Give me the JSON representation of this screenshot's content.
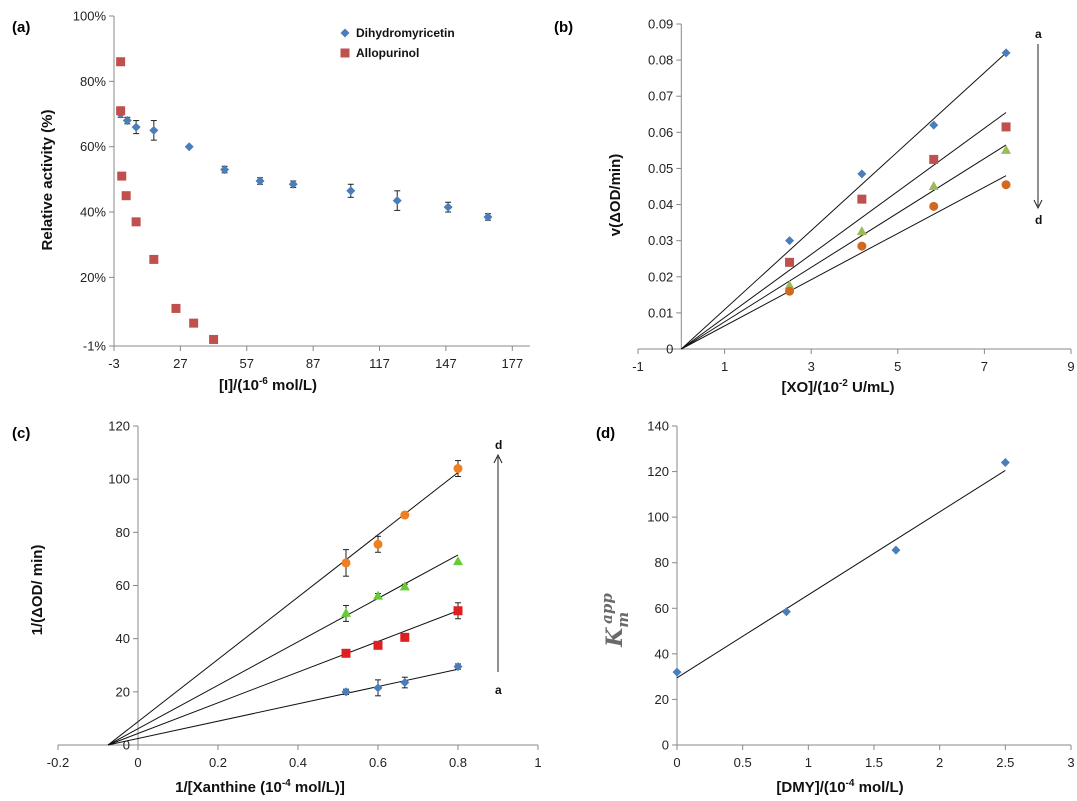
{
  "chart_data": [
    {
      "id": "a",
      "panel_label": "(a)",
      "type": "scatter",
      "xlabel": "[I]/(10-6 mol/L)",
      "ylabel": "Relative activity (%)",
      "xlim": [
        -3,
        185
      ],
      "ylim": [
        -1,
        100
      ],
      "x_ticks": [
        -3,
        27,
        57,
        87,
        117,
        147,
        177
      ],
      "y_ticks": [
        -1,
        20,
        40,
        60,
        80,
        100
      ],
      "y_tick_labels": [
        "-1%",
        "20%",
        "40%",
        "60%",
        "80%",
        "100%"
      ],
      "legend_position": "top-right",
      "series": [
        {
          "name": "Dihydromyricetin",
          "color": "#4a7ebb",
          "marker": "diamond",
          "points": [
            {
              "x": 0,
              "y": 70,
              "err": 1
            },
            {
              "x": 3,
              "y": 68,
              "err": 1
            },
            {
              "x": 7,
              "y": 66,
              "err": 2
            },
            {
              "x": 15,
              "y": 65,
              "err": 3
            },
            {
              "x": 31,
              "y": 60,
              "err": 0
            },
            {
              "x": 47,
              "y": 53,
              "err": 1
            },
            {
              "x": 63,
              "y": 49.5,
              "err": 1
            },
            {
              "x": 78,
              "y": 48.5,
              "err": 1
            },
            {
              "x": 104,
              "y": 46.5,
              "err": 2
            },
            {
              "x": 125,
              "y": 43.5,
              "err": 3
            },
            {
              "x": 148,
              "y": 41.5,
              "err": 1.5
            },
            {
              "x": 166,
              "y": 38.5,
              "err": 1
            }
          ]
        },
        {
          "name": "Allopurinol",
          "color": "#c0504d",
          "marker": "square",
          "points": [
            {
              "x": 0,
              "y": 86
            },
            {
              "x": 0,
              "y": 71
            },
            {
              "x": 0.5,
              "y": 51
            },
            {
              "x": 2.5,
              "y": 45
            },
            {
              "x": 7,
              "y": 37
            },
            {
              "x": 15,
              "y": 25.5
            },
            {
              "x": 25,
              "y": 10.5
            },
            {
              "x": 33,
              "y": 6
            },
            {
              "x": 42,
              "y": 1
            }
          ]
        }
      ]
    },
    {
      "id": "b",
      "panel_label": "(b)",
      "type": "scatter",
      "xlabel": "[XO]/(10-2 U/mL)",
      "ylabel": "v(ΔOD/min)",
      "xlim": [
        -1,
        9
      ],
      "ylim": [
        0,
        0.09
      ],
      "x_ticks": [
        -1,
        1,
        3,
        5,
        7,
        9
      ],
      "y_ticks": [
        0,
        0.01,
        0.02,
        0.03,
        0.04,
        0.05,
        0.06,
        0.07,
        0.08,
        0.09
      ],
      "y_tick_labels": [
        "0",
        "0.01",
        "0.02",
        "0.03",
        "0.04",
        "0.05",
        "0.06",
        "0.07",
        "0.08",
        "0.09"
      ],
      "annotation_top": "a",
      "annotation_bottom": "d",
      "series": [
        {
          "id": "a",
          "color": "#4a7ebb",
          "marker": "diamond",
          "x": [
            2.5,
            4.17,
            5.83,
            7.5
          ],
          "y": [
            0.03,
            0.0485,
            0.062,
            0.082
          ],
          "fit": {
            "x": [
              0,
              7.5
            ],
            "y": [
              0,
              0.082
            ]
          }
        },
        {
          "id": "b",
          "color": "#c0504d",
          "marker": "square",
          "x": [
            2.5,
            4.17,
            5.83,
            7.5
          ],
          "y": [
            0.024,
            0.0415,
            0.0525,
            0.0615
          ],
          "fit": {
            "x": [
              0,
              7.5
            ],
            "y": [
              0,
              0.0655
            ]
          }
        },
        {
          "id": "c",
          "color": "#9bbb59",
          "marker": "triangle",
          "x": [
            2.5,
            4.17,
            5.83,
            7.5
          ],
          "y": [
            0.0175,
            0.0325,
            0.045,
            0.055
          ],
          "fit": {
            "x": [
              0,
              7.5
            ],
            "y": [
              0,
              0.0565
            ]
          }
        },
        {
          "id": "d",
          "color": "#d2691e",
          "marker": "circle",
          "x": [
            2.5,
            4.17,
            5.83,
            7.5
          ],
          "y": [
            0.016,
            0.0285,
            0.0395,
            0.0455
          ],
          "fit": {
            "x": [
              0,
              7.5
            ],
            "y": [
              0,
              0.048
            ]
          }
        }
      ]
    },
    {
      "id": "c",
      "panel_label": "(c)",
      "type": "scatter",
      "xlabel": "1/[Xanthine (10-4 mol/L)]",
      "ylabel": "1/(ΔOD/ min)",
      "xlim": [
        -0.2,
        1
      ],
      "ylim": [
        0,
        120
      ],
      "x_ticks": [
        -0.2,
        0,
        0.2,
        0.4,
        0.6,
        0.8,
        1
      ],
      "y_ticks": [
        0,
        20,
        40,
        60,
        80,
        100,
        120
      ],
      "y_tick_labels": [
        "0",
        "20",
        "40",
        "60",
        "80",
        "100",
        "120"
      ],
      "annotation_top": "d",
      "annotation_bottom": "a",
      "series": [
        {
          "id": "a",
          "color": "#4a7ebb",
          "marker": "diamond",
          "x": [
            0.52,
            0.6,
            0.667,
            0.8
          ],
          "y": [
            20,
            21.5,
            23.5,
            29.5
          ],
          "err": [
            1,
            3,
            2,
            1
          ],
          "fit": {
            "x": [
              -0.075,
              0.8
            ],
            "y": [
              0,
              28.5
            ]
          }
        },
        {
          "id": "b",
          "color": "#e02020",
          "marker": "square",
          "x": [
            0.52,
            0.6,
            0.667,
            0.8
          ],
          "y": [
            34.5,
            37.5,
            40.5,
            50.5
          ],
          "err": [
            1,
            1,
            1,
            3
          ],
          "fit": {
            "x": [
              -0.075,
              0.8
            ],
            "y": [
              0,
              50.5
            ]
          }
        },
        {
          "id": "c",
          "color": "#66cc33",
          "marker": "triangle",
          "x": [
            0.52,
            0.6,
            0.667,
            0.8
          ],
          "y": [
            49.5,
            56,
            59.5,
            69
          ],
          "err": [
            3,
            1,
            1,
            0
          ],
          "fit": {
            "x": [
              -0.075,
              0.8
            ],
            "y": [
              0,
              71.5
            ]
          }
        },
        {
          "id": "d",
          "color": "#f07f1f",
          "marker": "circle",
          "x": [
            0.52,
            0.6,
            0.667,
            0.8
          ],
          "y": [
            68.5,
            75.5,
            86.5,
            104
          ],
          "err": [
            5,
            3,
            1,
            3
          ],
          "fit": {
            "x": [
              -0.075,
              0.8
            ],
            "y": [
              0,
              102.5
            ]
          }
        }
      ]
    },
    {
      "id": "d",
      "panel_label": "(d)",
      "type": "scatter",
      "xlabel": "[DMY]/(10-4 mol/L)",
      "ylabel": "Km app",
      "xlim": [
        0,
        3
      ],
      "ylim": [
        0,
        140
      ],
      "x_ticks": [
        0,
        0.5,
        1,
        1.5,
        2,
        2.5,
        3
      ],
      "y_ticks": [
        0,
        20,
        40,
        60,
        80,
        100,
        120,
        140
      ],
      "y_tick_labels": [
        "0",
        "20",
        "40",
        "60",
        "80",
        "100",
        "120",
        "140"
      ],
      "series": [
        {
          "color": "#4a7ebb",
          "marker": "diamond",
          "x": [
            0,
            0.833,
            1.667,
            2.5
          ],
          "y": [
            32,
            58.5,
            85.5,
            124
          ],
          "fit": {
            "x": [
              0,
              2.5
            ],
            "y": [
              29.5,
              120.5
            ]
          }
        }
      ]
    }
  ],
  "panels": {
    "a": {
      "label": "(a)",
      "xlabel_main": "[I]/(10",
      "xlabel_sup": "-6",
      "xlabel_tail": " mol/L)",
      "ylabel": "Relative activity (%)"
    },
    "b": {
      "label": "(b)",
      "xlabel_main": "[XO]/(10",
      "xlabel_sup": "-2",
      "xlabel_tail": " U/mL)",
      "ylabel": "v(ΔOD/min)",
      "ann_top": "a",
      "ann_bottom": "d"
    },
    "c": {
      "label": "(c)",
      "xlabel_main": "1/[Xanthine (10",
      "xlabel_sup": "-4",
      "xlabel_tail": " mol/L)]",
      "ylabel": "1/(ΔOD/ min)",
      "ann_top": "d",
      "ann_bottom": "a"
    },
    "d": {
      "label": "(d)",
      "xlabel_main": "[DMY]/(10",
      "xlabel_sup": "-4",
      "xlabel_tail": " mol/L)",
      "ylabel_main": "K",
      "ylabel_sub": "m",
      "ylabel_sup": "app"
    }
  }
}
